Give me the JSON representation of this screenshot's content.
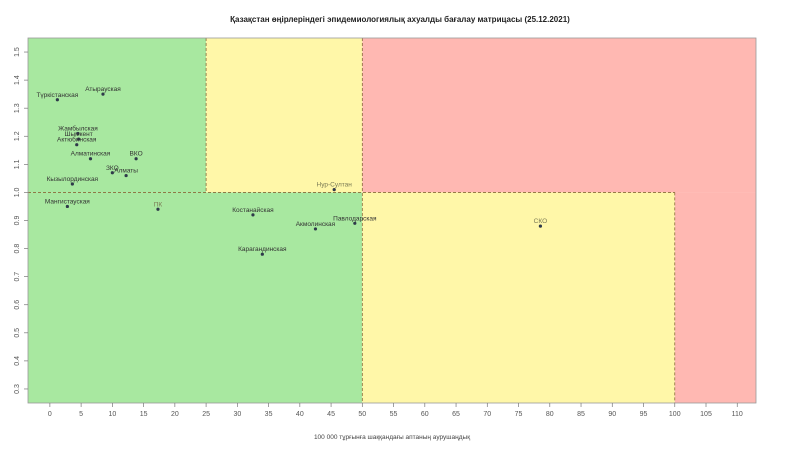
{
  "chart_data": {
    "type": "scatter",
    "title": "Қазақстан өңірлеріндегі эпидемиологиялық ахуалды бағалау матрицасы  (25.12.2021)",
    "xlabel": "100 000 тұрғынға шаққандағы аптаның аурушаңдық",
    "ylabel": "",
    "xlim": [
      -3.5,
      113
    ],
    "ylim": [
      0.25,
      1.55
    ],
    "x_ticks": [
      0,
      5,
      10,
      15,
      20,
      25,
      30,
      35,
      40,
      45,
      50,
      55,
      60,
      65,
      70,
      75,
      80,
      85,
      90,
      95,
      100,
      105,
      110
    ],
    "y_ticks": [
      0.3,
      0.4,
      0.5,
      0.6,
      0.7,
      0.8,
      0.9,
      1.0,
      1.1,
      1.2,
      1.3,
      1.4,
      1.5
    ],
    "y_tick_labels": [
      "0.3",
      "0.4",
      "0.5",
      "0.6",
      "0.7",
      "0.8",
      "0.9",
      "1.0",
      "1.1",
      "1.2",
      "1.3",
      "1.4",
      "1.5"
    ],
    "grid": false,
    "zones": [
      {
        "x": [
          -3.5,
          25
        ],
        "y": [
          1.0,
          1.55
        ],
        "color": "#a8e8a0"
      },
      {
        "x": [
          25,
          50
        ],
        "y": [
          1.0,
          1.55
        ],
        "color": "#fff7a8"
      },
      {
        "x": [
          50,
          113
        ],
        "y": [
          1.0,
          1.55
        ],
        "color": "#ffb8b2"
      },
      {
        "x": [
          -3.5,
          50
        ],
        "y": [
          0.25,
          1.0
        ],
        "color": "#a8e8a0"
      },
      {
        "x": [
          50,
          100
        ],
        "y": [
          0.25,
          1.0
        ],
        "color": "#fff7a8"
      },
      {
        "x": [
          100,
          113
        ],
        "y": [
          0.25,
          1.0
        ],
        "color": "#ffb8b2"
      }
    ],
    "threshold_lines": [
      {
        "orientation": "horizontal",
        "y": 1.0,
        "x": [
          -3.5,
          100
        ]
      },
      {
        "orientation": "vertical",
        "x": 25,
        "y": [
          1.0,
          1.55
        ]
      },
      {
        "orientation": "vertical",
        "x": 50,
        "y": [
          0.25,
          1.55
        ]
      },
      {
        "orientation": "vertical",
        "x": 100,
        "y": [
          0.25,
          1.0
        ]
      }
    ],
    "points": [
      {
        "label": "Түркістанская",
        "x": 1.2,
        "y": 1.33,
        "muted": false
      },
      {
        "label": "Атырауская",
        "x": 8.5,
        "y": 1.35,
        "muted": false
      },
      {
        "label": "Жамбылская",
        "x": 4.5,
        "y": 1.21,
        "muted": false
      },
      {
        "label": "Шымкент",
        "x": 4.6,
        "y": 1.19,
        "muted": false
      },
      {
        "label": "Актюбинская",
        "x": 4.3,
        "y": 1.17,
        "muted": false
      },
      {
        "label": "Алматинская",
        "x": 6.5,
        "y": 1.12,
        "muted": false
      },
      {
        "label": "ВКО",
        "x": 13.8,
        "y": 1.12,
        "muted": false
      },
      {
        "label": "ЗКО",
        "x": 10.0,
        "y": 1.07,
        "muted": false
      },
      {
        "label": "Алматы",
        "x": 12.2,
        "y": 1.06,
        "muted": false
      },
      {
        "label": "Кызылординская",
        "x": 3.6,
        "y": 1.03,
        "muted": false
      },
      {
        "label": "Нур-Султан",
        "x": 45.5,
        "y": 1.01,
        "muted": true
      },
      {
        "label": "Мангистауская",
        "x": 2.8,
        "y": 0.95,
        "muted": false
      },
      {
        "label": "ПК",
        "x": 17.3,
        "y": 0.94,
        "muted": true
      },
      {
        "label": "Костанайская",
        "x": 32.5,
        "y": 0.92,
        "muted": false
      },
      {
        "label": "Павлодарская",
        "x": 48.8,
        "y": 0.89,
        "muted": false
      },
      {
        "label": "Акмолинская",
        "x": 42.5,
        "y": 0.87,
        "muted": false
      },
      {
        "label": "СКО",
        "x": 78.5,
        "y": 0.88,
        "muted": true
      },
      {
        "label": "Карагандинская",
        "x": 34.0,
        "y": 0.78,
        "muted": false
      }
    ]
  }
}
